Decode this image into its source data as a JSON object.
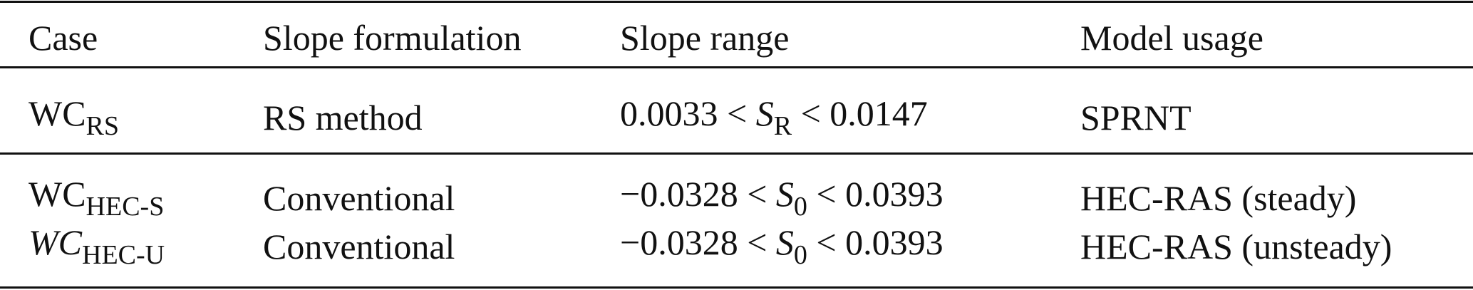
{
  "table": {
    "header": [
      "Case",
      "Slope formulation",
      "Slope range",
      "Model usage"
    ],
    "rows": [
      [
        [
          {
            "text": "WC"
          },
          {
            "text": "RS",
            "sub": true
          }
        ],
        [
          {
            "text": "RS method"
          }
        ],
        [
          {
            "text": "0.0033 < "
          },
          {
            "text": "S",
            "italic": true
          },
          {
            "text": "R",
            "sub": true
          },
          {
            "text": " < 0.0147"
          }
        ],
        [
          {
            "text": "SPRNT"
          }
        ]
      ],
      [
        [
          {
            "text": "WC"
          },
          {
            "text": "HEC-S",
            "sub": true
          }
        ],
        [
          {
            "text": "Conventional"
          }
        ],
        [
          {
            "text": "−0.0328 < "
          },
          {
            "text": "S",
            "italic": true
          },
          {
            "text": "0",
            "sub": true
          },
          {
            "text": " < 0.0393"
          }
        ],
        [
          {
            "text": "HEC-RAS (steady)"
          }
        ]
      ],
      [
        [
          {
            "text": "WC",
            "italic": true
          },
          {
            "text": "HEC-U",
            "sub": true
          }
        ],
        [
          {
            "text": "Conventional"
          }
        ],
        [
          {
            "text": "−0.0328 < "
          },
          {
            "text": "S",
            "italic": true
          },
          {
            "text": "0",
            "sub": true
          },
          {
            "text": " < 0.0393"
          }
        ],
        [
          {
            "text": "HEC-RAS (unsteady)"
          }
        ]
      ]
    ]
  }
}
